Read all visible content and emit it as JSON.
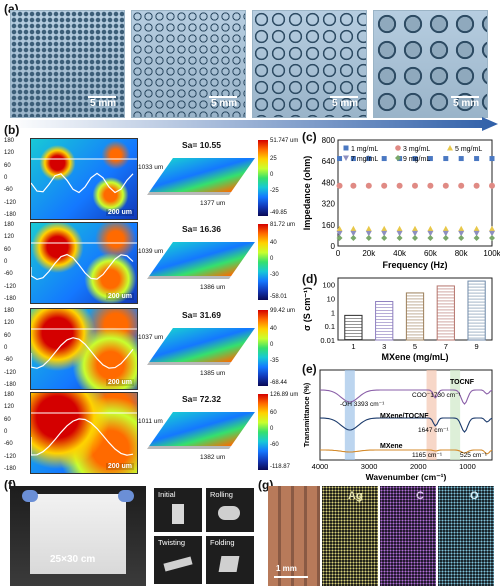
{
  "panels": {
    "a": "(a)",
    "b": "(b)",
    "c": "(c)",
    "d": "(d)",
    "e": "(e)",
    "f": "(f)",
    "g": "(g)"
  },
  "panel_a": {
    "scale_label": "5 mm"
  },
  "panel_b": {
    "rows": [
      {
        "sa": "Sa= 10.55",
        "cb_max": "51.747 um",
        "cb_min": "-49.85",
        "cb_mid": [
          "25",
          "0",
          "-25"
        ],
        "dim1": "1033 um",
        "dim2": "1377 um"
      },
      {
        "sa": "Sa= 16.36",
        "cb_max": "81.72 um",
        "cb_min": "-58.01",
        "cb_mid": [
          "40",
          "0",
          "-30"
        ],
        "dim1": "1039 um",
        "dim2": "1386 um"
      },
      {
        "sa": "Sa= 31.69",
        "cb_max": "99.42 um",
        "cb_min": "-68.44",
        "cb_mid": [
          "40",
          "0",
          "-35"
        ],
        "dim1": "1037 um",
        "dim2": "1385 um"
      },
      {
        "sa": "Sa= 72.32",
        "cb_max": "126.89 um",
        "cb_min": "-118.87",
        "cb_mid": [
          "60",
          "0",
          "-60"
        ],
        "dim1": "1011 um",
        "dim2": "1382 um"
      }
    ],
    "y_ticks": [
      "180",
      "120",
      "60",
      "0",
      "-60",
      "-120",
      "-180"
    ],
    "scale_label": "200 um"
  },
  "panel_f": {
    "size_label": "25×30 cm",
    "states": [
      "Initial",
      "Rolling",
      "Twisting",
      "Folding"
    ]
  },
  "panel_g": {
    "scale_label": "1 mm",
    "elements": [
      "Ag",
      "C",
      "O"
    ]
  },
  "chart_data": [
    {
      "id": "c",
      "type": "scatter",
      "xlabel": "Frequency (Hz)",
      "ylabel": "Impedance (ohm)",
      "x_ticks": [
        "0",
        "20k",
        "40k",
        "60k",
        "80k",
        "100k"
      ],
      "y_ticks": [
        "0",
        "160",
        "320",
        "480",
        "640",
        "800"
      ],
      "xlim": [
        0,
        100000
      ],
      "ylim": [
        0,
        800
      ],
      "x": [
        1000,
        10000,
        20000,
        30000,
        40000,
        50000,
        60000,
        70000,
        80000,
        90000,
        100000
      ],
      "series": [
        {
          "name": "1 mg/mL",
          "color": "#4a78c2",
          "marker": "square",
          "value": 660
        },
        {
          "name": "3 mg/mL",
          "color": "#e08a84",
          "marker": "circle",
          "value": 455
        },
        {
          "name": "5 mg/mL",
          "color": "#e8c84a",
          "marker": "triangle",
          "value": 130
        },
        {
          "name": "7 mg/mL",
          "color": "#8d8fbf",
          "marker": "triangle-down",
          "value": 95
        },
        {
          "name": "9 mg/mL",
          "color": "#7aa86a",
          "marker": "diamond",
          "value": 60
        }
      ]
    },
    {
      "id": "d",
      "type": "bar",
      "xlabel": "MXene (mg/mL)",
      "ylabel": "σ (S cm⁻¹)",
      "categories": [
        "1",
        "3",
        "5",
        "7",
        "9"
      ],
      "values": [
        0.6,
        6,
        25,
        80,
        180
      ],
      "colors": [
        "#2d2d2d",
        "#8e7fbf",
        "#9c7f5a",
        "#b5736b",
        "#6f8aa8"
      ],
      "y_ticks": [
        "0.01",
        "0.1",
        "1",
        "10",
        "100"
      ],
      "log": true,
      "ylim": [
        0.01,
        300
      ]
    },
    {
      "id": "e",
      "type": "line",
      "xlabel": "Wavenumber (cm⁻¹)",
      "ylabel": "Transmittance (%)",
      "x_ticks": [
        "4000",
        "3000",
        "2000",
        "1000"
      ],
      "xlim": [
        4000,
        500
      ],
      "series": [
        {
          "name": "TOCNF",
          "color": "#8a5fa8"
        },
        {
          "name": "MXene/TOCNF",
          "color": "#1b3a6b"
        },
        {
          "name": "MXene",
          "color": "#d48a2a"
        }
      ],
      "annotations": [
        "-OH 3393 cm⁻¹",
        "COO⁻1730 cm⁻¹",
        "1647 cm⁻¹",
        "1165 cm⁻¹",
        "525 cm⁻¹"
      ],
      "bands": [
        3393,
        1730,
        1250
      ]
    }
  ]
}
